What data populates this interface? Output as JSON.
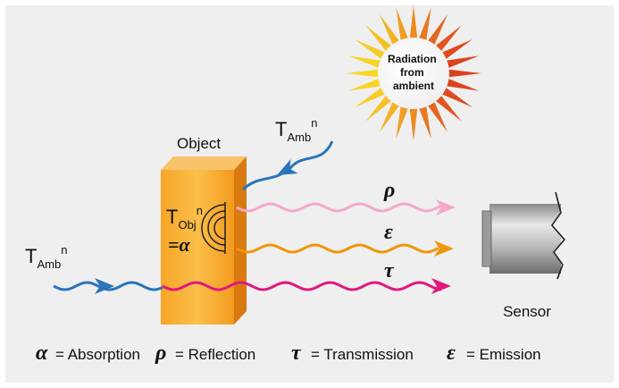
{
  "sun_label": [
    "Radiation",
    "from",
    "ambient"
  ],
  "object_label": "Object",
  "ambient_top": {
    "base": "T",
    "sub": "Amb",
    "sup": "n"
  },
  "ambient_left": {
    "base": "T",
    "sub": "Amb",
    "sup": "n"
  },
  "object_temp": {
    "base": "T",
    "sub": "Obj",
    "sup": "n"
  },
  "object_alpha": "=α",
  "wave_labels": {
    "rho": "ρ",
    "epsilon": "ε",
    "tau": "τ"
  },
  "sensor_label": "Sensor",
  "legend": [
    {
      "symbol": "α",
      "text": "= Absorption"
    },
    {
      "symbol": "ρ",
      "text": "= Reflection"
    },
    {
      "symbol": "τ",
      "text": "= Transmission"
    },
    {
      "symbol": "ε",
      "text": "= Emission"
    }
  ]
}
